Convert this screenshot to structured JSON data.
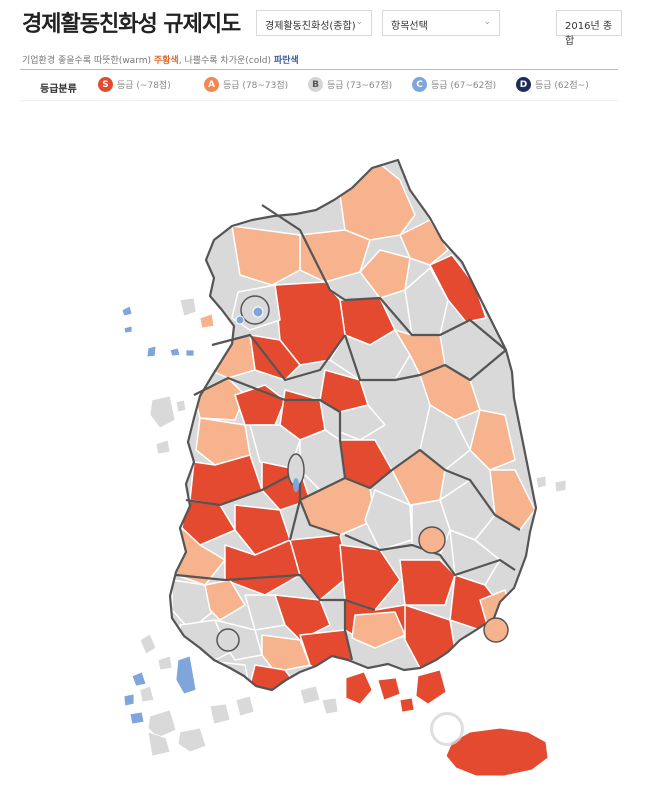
{
  "header": {
    "title": "경제활동친화성 규제지도",
    "select_category": "경제활동친화성(종합)",
    "select_item": "항목선택",
    "select_year": "2016년 종합"
  },
  "description": {
    "prefix": "기업환경 좋을수록 따뜻한(warm) ",
    "warm": "주황색",
    "middle": ", 나쁠수록 차가운(cold) ",
    "cold": "파란색"
  },
  "legend": {
    "title": "등급분류",
    "items": [
      {
        "letter": "S",
        "label": "등급 (~78점)",
        "color": "#e34a2f"
      },
      {
        "letter": "A",
        "label": "등급 (78~73점)",
        "color": "#f5864f"
      },
      {
        "letter": "B",
        "label": "등급 (73~67점)",
        "color": "#d5d5d5"
      },
      {
        "letter": "C",
        "label": "등급 (67~62점)",
        "color": "#7ea6dc"
      },
      {
        "letter": "D",
        "label": "등급 (62점~)",
        "color": "#1d2c59"
      }
    ]
  },
  "map_colors": {
    "S": "#e34a2f",
    "A": "#f6b38d",
    "B": "#d9d9d9",
    "C": "#7ea6dc",
    "border": "#ffffff",
    "province_border": "#555555"
  }
}
